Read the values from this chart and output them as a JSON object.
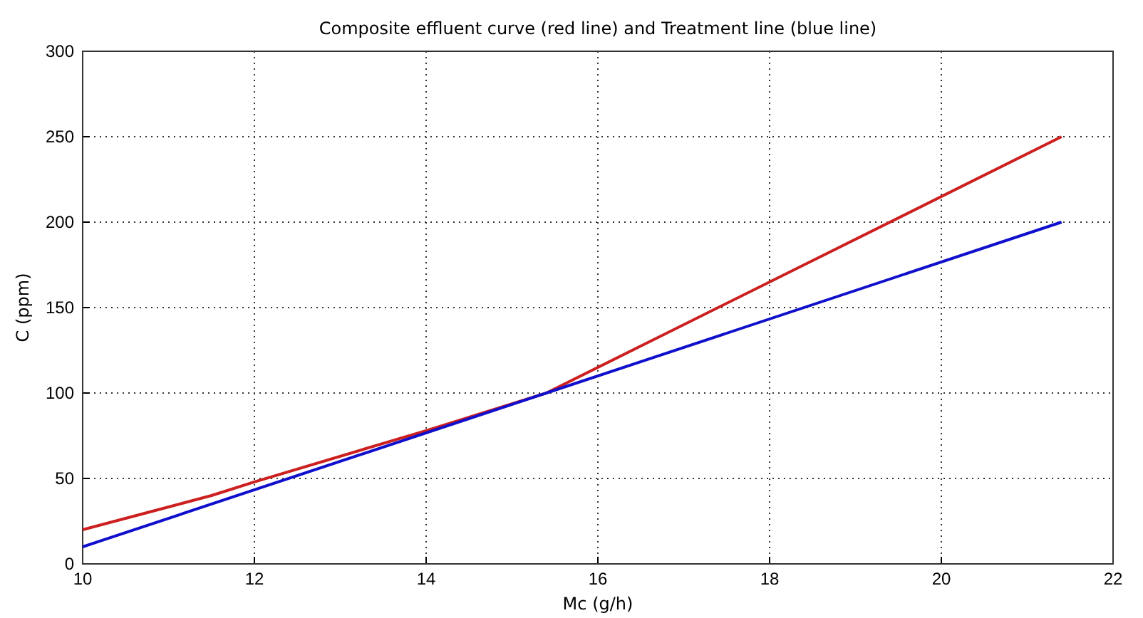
{
  "chart_data": {
    "type": "line",
    "title": "Composite effluent curve (red line) and Treatment line (blue line)",
    "xlabel": "Mc (g/h)",
    "ylabel": "C (ppm)",
    "series": [
      {
        "color": "#cc1f1f",
        "x": [
          10,
          11.5,
          12,
          14,
          15.4,
          21.4
        ],
        "values": [
          20,
          40,
          48,
          78,
          100,
          250
        ]
      },
      {
        "color": "#1010cc",
        "x": [
          10,
          15.4,
          21.4
        ],
        "values": [
          10,
          100,
          200
        ]
      }
    ],
    "xlim": [
      10,
      22
    ],
    "xticks": [
      10,
      12,
      14,
      16,
      18,
      20,
      22
    ],
    "ylim": [
      0,
      300
    ],
    "yticks": [
      0,
      50,
      100,
      150,
      200,
      250,
      300
    ],
    "grid": true,
    "marker": "none",
    "line_style": "solid"
  }
}
